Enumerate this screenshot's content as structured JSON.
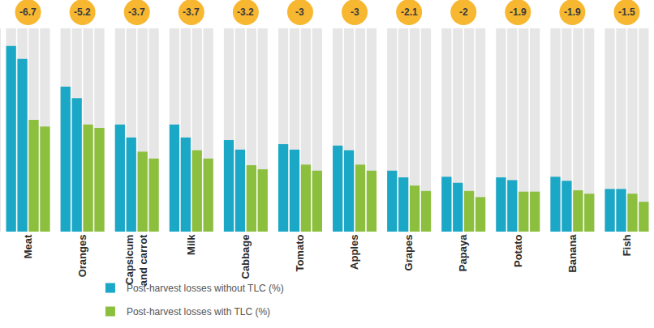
{
  "chart_data": {
    "type": "bar",
    "categories": [
      "Meat",
      "Oranges",
      "Capsicum and carrot",
      "Milk",
      "Cabbage",
      "Tomato",
      "Apples",
      "Grapes",
      "Papaya",
      "Potato",
      "Banana",
      "Fish"
    ],
    "series": [
      {
        "name": "Post-harvest losses without TLC (%)",
        "color": "#1ba8c6",
        "values": [
          27.4,
          21.4,
          15.8,
          15.8,
          13.5,
          12.9,
          12.7,
          9.0,
          8.1,
          8.0,
          8.1,
          6.3
        ]
      },
      {
        "name": "Post-harvest losses without TLC (%)",
        "color": "#1ba8c6",
        "values": [
          25.5,
          19.7,
          13.9,
          13.9,
          12.1,
          12.1,
          12.0,
          8.0,
          7.2,
          7.6,
          7.5,
          6.3
        ]
      },
      {
        "name": "Post-harvest losses with TLC (%)",
        "color": "#8dbf3f",
        "values": [
          16.5,
          15.8,
          11.8,
          12.0,
          9.8,
          9.9,
          9.9,
          6.8,
          6.0,
          5.9,
          6.1,
          5.6
        ]
      },
      {
        "name": "Post-harvest losses with TLC (%)",
        "color": "#8dbf3f",
        "values": [
          15.5,
          15.3,
          10.8,
          10.8,
          9.2,
          9.0,
          9.0,
          6.0,
          5.1,
          5.9,
          5.6,
          4.4
        ]
      }
    ],
    "differences": [
      -6.7,
      -5.2,
      -3.7,
      -3.7,
      -3.2,
      -3,
      -3,
      -2.1,
      -2,
      -1.9,
      -1.9,
      -1.5
    ],
    "ylim": [
      0,
      30
    ],
    "tick_labels": "x",
    "grid": false,
    "legend": "bottom"
  }
}
